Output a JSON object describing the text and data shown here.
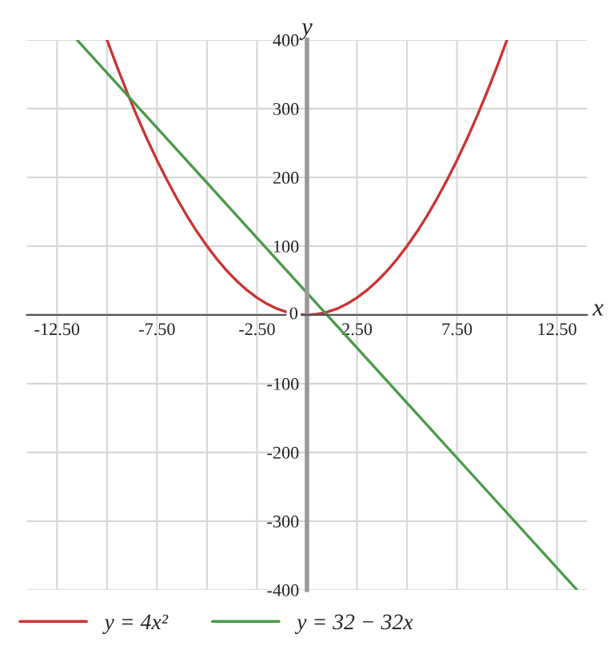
{
  "chart_data": {
    "type": "line",
    "xlabel": "x",
    "ylabel": "y",
    "xlim": [
      -14,
      14
    ],
    "ylim": [
      -400,
      400
    ],
    "xticks": [
      {
        "value": -12.5,
        "label": "-12.50"
      },
      {
        "value": -10,
        "label": null
      },
      {
        "value": -7.5,
        "label": "-7.50"
      },
      {
        "value": -5,
        "label": null
      },
      {
        "value": -2.5,
        "label": "-2.50"
      },
      {
        "value": 2.5,
        "label": "2.50"
      },
      {
        "value": 5,
        "label": null
      },
      {
        "value": 7.5,
        "label": "7.50"
      },
      {
        "value": 10,
        "label": null
      },
      {
        "value": 12.5,
        "label": "12.50"
      }
    ],
    "yticks": [
      -400,
      -300,
      -200,
      -100,
      0,
      100,
      200,
      300,
      400
    ],
    "grid": true,
    "legend": "bottom left",
    "marker": "none",
    "line_style": "solid",
    "series": [
      {
        "name": "y = 4x²",
        "color": "#cc3333",
        "x": [
          -10,
          -9.5,
          -9,
          -8.5,
          -8,
          -7.5,
          -7,
          -6.5,
          -6,
          -5.5,
          -5,
          -4.5,
          -4,
          -3.5,
          -3,
          -2.5,
          -2,
          -1.5,
          -1,
          -0.5,
          0,
          0.5,
          1,
          1.5,
          2,
          2.5,
          3,
          3.5,
          4,
          4.5,
          5,
          5.5,
          6,
          6.5,
          7,
          7.5,
          8,
          8.5,
          9,
          9.5,
          10
        ],
        "values": [
          400,
          361,
          324,
          289,
          256,
          225,
          196,
          169,
          144,
          121,
          100,
          81,
          64,
          49,
          36,
          25,
          16,
          9,
          4,
          1,
          0,
          1,
          4,
          9,
          16,
          25,
          36,
          49,
          64,
          81,
          100,
          121,
          144,
          169,
          196,
          225,
          256,
          289,
          324,
          361,
          400
        ]
      },
      {
        "name": "y = 32 − 32x",
        "color": "#4a9a4a",
        "x": [
          -11.5,
          -6.5,
          -1.5,
          3.5,
          8.5,
          13.5
        ],
        "values": [
          400,
          240,
          80,
          -80,
          -240,
          -400
        ]
      }
    ]
  }
}
